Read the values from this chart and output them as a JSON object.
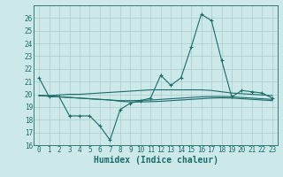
{
  "xlabel": "Humidex (Indice chaleur)",
  "bg_color": "#cde8e8",
  "grid_color": "#aacccc",
  "line_color": "#1a6b6b",
  "x_values": [
    0,
    1,
    2,
    3,
    4,
    5,
    6,
    7,
    8,
    9,
    10,
    11,
    12,
    13,
    14,
    15,
    16,
    17,
    18,
    19,
    20,
    21,
    22,
    23
  ],
  "series": [
    [
      21.3,
      19.8,
      19.8,
      18.3,
      18.3,
      18.3,
      17.5,
      16.4,
      18.8,
      19.3,
      19.5,
      19.7,
      21.5,
      20.7,
      21.3,
      23.7,
      26.3,
      25.8,
      22.7,
      19.8,
      20.3,
      20.2,
      20.1,
      19.7
    ],
    [
      19.9,
      19.9,
      19.95,
      20.0,
      20.0,
      20.05,
      20.1,
      20.15,
      20.2,
      20.25,
      20.3,
      20.35,
      20.35,
      20.35,
      20.35,
      20.35,
      20.35,
      20.3,
      20.2,
      20.1,
      20.05,
      20.0,
      19.95,
      19.9
    ],
    [
      19.9,
      19.85,
      19.8,
      19.75,
      19.7,
      19.65,
      19.6,
      19.55,
      19.5,
      19.5,
      19.52,
      19.55,
      19.6,
      19.65,
      19.7,
      19.75,
      19.8,
      19.82,
      19.82,
      19.8,
      19.75,
      19.7,
      19.65,
      19.6
    ],
    [
      19.9,
      19.85,
      19.8,
      19.75,
      19.7,
      19.65,
      19.6,
      19.55,
      19.45,
      19.4,
      19.4,
      19.42,
      19.45,
      19.5,
      19.55,
      19.6,
      19.65,
      19.7,
      19.72,
      19.7,
      19.65,
      19.6,
      19.55,
      19.5
    ]
  ],
  "ylim": [
    16,
    27
  ],
  "xlim": [
    -0.5,
    23.5
  ],
  "yticks": [
    16,
    17,
    18,
    19,
    20,
    21,
    22,
    23,
    24,
    25,
    26
  ],
  "xticks": [
    0,
    1,
    2,
    3,
    4,
    5,
    6,
    7,
    8,
    9,
    10,
    11,
    12,
    13,
    14,
    15,
    16,
    17,
    18,
    19,
    20,
    21,
    22,
    23
  ],
  "tick_fontsize": 5.5,
  "label_fontsize": 7.0,
  "marker": "+",
  "markersize": 3.5,
  "linewidth": 0.8
}
